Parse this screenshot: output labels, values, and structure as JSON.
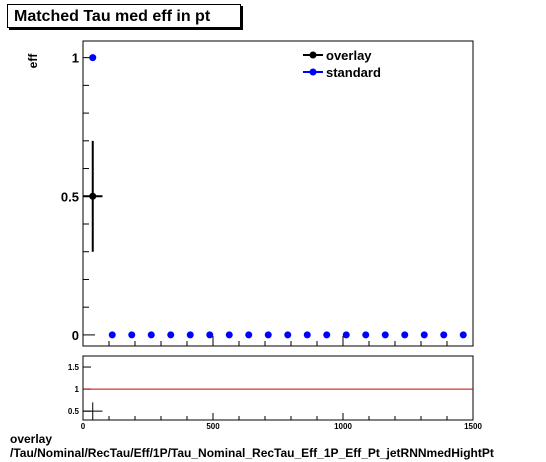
{
  "title": "Matched Tau med eff in pt",
  "footer": {
    "line1": "overlay",
    "line2": "/Tau/Nominal/RecTau/Eff/1P/Tau_Nominal_RecTau_Eff_1P_Eff_Pt_jetRNNmedHightPt"
  },
  "colors": {
    "overlay": "#000000",
    "standard": "#0000ff",
    "ratio_line": "#cc0000"
  },
  "chart_data": [
    {
      "type": "scatter",
      "ylabel": "eff",
      "xlim": [
        0,
        1500
      ],
      "ylim": [
        -0.04,
        1.06
      ],
      "y_ticks": [
        0,
        0.5,
        1
      ],
      "y_tick_labels": [
        "0",
        "0.5",
        "1"
      ],
      "legend_position": "top-right",
      "series": [
        {
          "name": "overlay",
          "color": "#000000",
          "points": [
            {
              "x": 37.5,
              "y": 0.5,
              "xerr": 37.5,
              "yerr": 0.2
            }
          ]
        },
        {
          "name": "standard",
          "color": "#0000ff",
          "points": [
            {
              "x": 37.5,
              "y": 1
            },
            {
              "x": 112.5,
              "y": 0
            },
            {
              "x": 187.5,
              "y": 0
            },
            {
              "x": 262.5,
              "y": 0
            },
            {
              "x": 337.5,
              "y": 0
            },
            {
              "x": 412.5,
              "y": 0
            },
            {
              "x": 487.5,
              "y": 0
            },
            {
              "x": 562.5,
              "y": 0
            },
            {
              "x": 637.5,
              "y": 0
            },
            {
              "x": 712.5,
              "y": 0
            },
            {
              "x": 787.5,
              "y": 0
            },
            {
              "x": 862.5,
              "y": 0
            },
            {
              "x": 937.5,
              "y": 0
            },
            {
              "x": 1012.5,
              "y": 0
            },
            {
              "x": 1087.5,
              "y": 0
            },
            {
              "x": 1162.5,
              "y": 0
            },
            {
              "x": 1237.5,
              "y": 0
            },
            {
              "x": 1312.5,
              "y": 0
            },
            {
              "x": 1387.5,
              "y": 0
            },
            {
              "x": 1462.5,
              "y": 0
            }
          ]
        }
      ]
    },
    {
      "type": "line",
      "xlim": [
        0,
        1500
      ],
      "ylim": [
        0.3,
        1.75
      ],
      "x_ticks": [
        0,
        500,
        1000,
        1500
      ],
      "x_tick_labels": [
        "0",
        "500",
        "1000",
        "1500"
      ],
      "y_ticks": [
        0.5,
        1,
        1.5
      ],
      "y_tick_labels": [
        "0.5",
        "1",
        "1.5"
      ],
      "reference_line": 1,
      "points": [
        {
          "x": 37.5,
          "y": 0.5,
          "xerr": 37.5,
          "yerr": 0.2
        }
      ]
    }
  ]
}
